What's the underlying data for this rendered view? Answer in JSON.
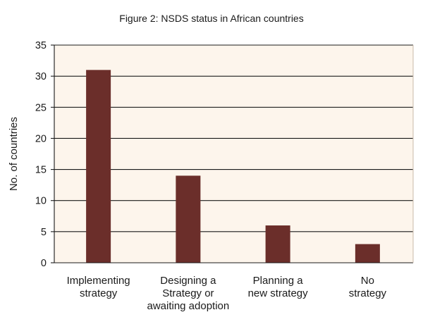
{
  "chart_data": {
    "type": "bar",
    "title": "Figure 2: NSDS status in African countries",
    "xlabel": "",
    "ylabel": "No. of countries",
    "categories": [
      [
        "Implementing",
        "strategy"
      ],
      [
        "Designing a",
        "Strategy or",
        "awaiting adoption"
      ],
      [
        "Planning a",
        "new strategy"
      ],
      [
        "No",
        "strategy"
      ]
    ],
    "values": [
      31,
      14,
      6,
      3
    ],
    "ylim": [
      0,
      35
    ],
    "yticks": [
      0,
      5,
      10,
      15,
      20,
      25,
      30,
      35
    ],
    "grid": true,
    "legend": "none"
  },
  "colors": {
    "bar": "#6b2e2a",
    "plot_background": "#fdf5ec",
    "gridline": "#1a1a1a"
  }
}
